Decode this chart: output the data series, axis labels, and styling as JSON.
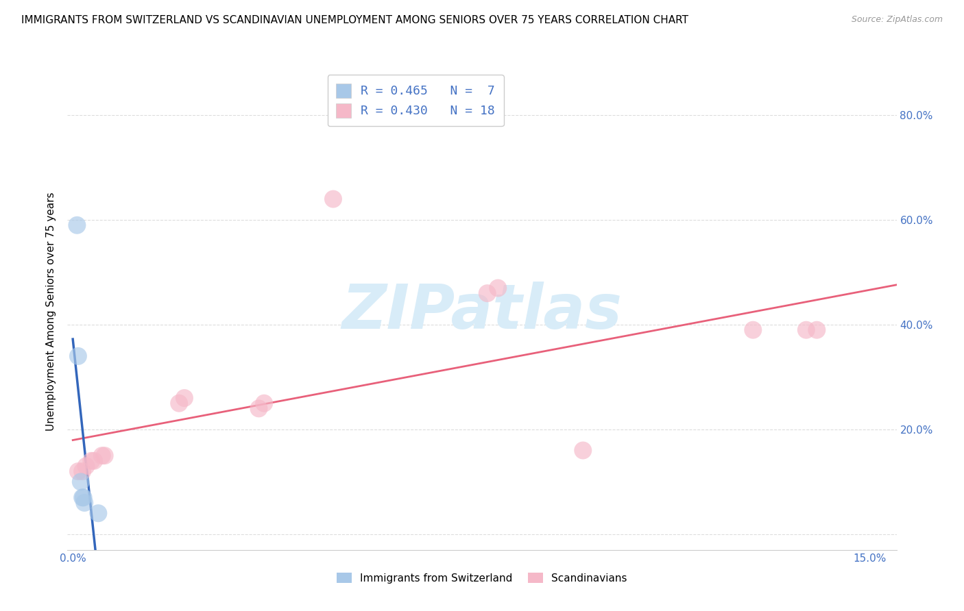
{
  "title": "IMMIGRANTS FROM SWITZERLAND VS SCANDINAVIAN UNEMPLOYMENT AMONG SENIORS OVER 75 YEARS CORRELATION CHART",
  "source": "Source: ZipAtlas.com",
  "ylabel": "Unemployment Among Seniors over 75 years",
  "xlim": [
    -0.001,
    0.155
  ],
  "ylim": [
    -0.03,
    0.88
  ],
  "x_tick_positions": [
    0.0,
    0.05,
    0.1,
    0.15
  ],
  "x_tick_labels": [
    "0.0%",
    "",
    "",
    "15.0%"
  ],
  "y_tick_positions": [
    0.0,
    0.2,
    0.4,
    0.6,
    0.8
  ],
  "y_tick_labels": [
    "",
    "20.0%",
    "40.0%",
    "60.0%",
    "80.0%"
  ],
  "legend_r1": "R = 0.465",
  "legend_n1": "N =  7",
  "legend_r2": "R = 0.430",
  "legend_n2": "N = 18",
  "switzerland_x": [
    0.0008,
    0.001,
    0.0015,
    0.0018,
    0.002,
    0.0022,
    0.0048
  ],
  "switzerland_y": [
    0.59,
    0.34,
    0.1,
    0.07,
    0.07,
    0.06,
    0.04
  ],
  "scandinavian_x": [
    0.001,
    0.0018,
    0.0025,
    0.0035,
    0.004,
    0.0055,
    0.006,
    0.02,
    0.021,
    0.035,
    0.036,
    0.049,
    0.078,
    0.08,
    0.096,
    0.128,
    0.138,
    0.14
  ],
  "scandinavian_y": [
    0.12,
    0.12,
    0.13,
    0.14,
    0.14,
    0.15,
    0.15,
    0.25,
    0.26,
    0.24,
    0.25,
    0.64,
    0.46,
    0.47,
    0.16,
    0.39,
    0.39,
    0.39
  ],
  "swiss_fill_color": "#a8c8e8",
  "swiss_line_color": "#3366bb",
  "scand_fill_color": "#f5b8c8",
  "scand_line_color": "#e8607a",
  "watermark_text": "ZIPatlas",
  "watermark_color": "#d8ecf8",
  "background_color": "#ffffff",
  "grid_color": "#dddddd",
  "axis_tick_color": "#4472c4",
  "title_fontsize": 11,
  "source_fontsize": 9,
  "tick_fontsize": 11,
  "marker_size": 350,
  "marker_alpha": 0.65
}
